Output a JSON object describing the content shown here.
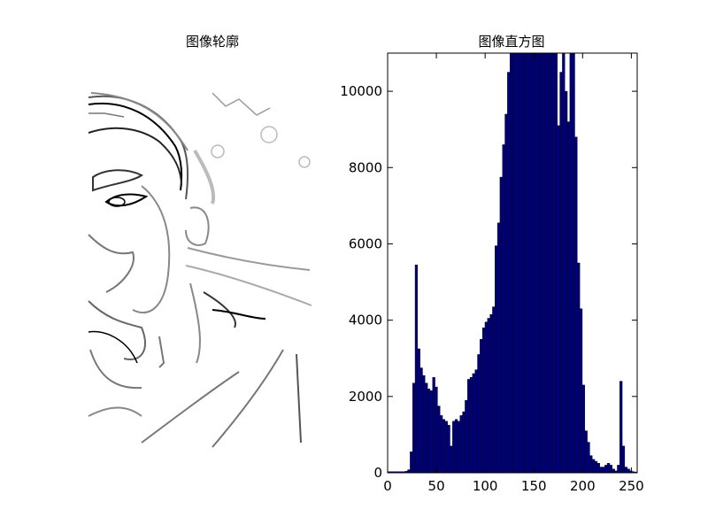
{
  "panels": {
    "left_title": "图像轮廓",
    "right_title": "图像直方图"
  },
  "chart_data": [
    {
      "type": "image",
      "title": "图像轮廓",
      "description_note": ""
    },
    {
      "type": "bar",
      "title": "图像直方图",
      "xlabel": "",
      "ylabel": "",
      "xlim": [
        0,
        256
      ],
      "ylim": [
        0,
        11000
      ],
      "xticks": [
        0,
        50,
        100,
        150,
        200,
        250
      ],
      "yticks": [
        0,
        2000,
        4000,
        6000,
        8000,
        10000
      ],
      "bar_color": "#00007f",
      "bin_width": 2.56,
      "bins": [
        {
          "x": 0,
          "value": 30
        },
        {
          "x": 2.56,
          "value": 30
        },
        {
          "x": 5.12,
          "value": 30
        },
        {
          "x": 7.68,
          "value": 30
        },
        {
          "x": 10.24,
          "value": 30
        },
        {
          "x": 12.8,
          "value": 30
        },
        {
          "x": 15.36,
          "value": 30
        },
        {
          "x": 17.92,
          "value": 40
        },
        {
          "x": 20.48,
          "value": 80
        },
        {
          "x": 23.04,
          "value": 550
        },
        {
          "x": 25.6,
          "value": 2350
        },
        {
          "x": 28.16,
          "value": 5450
        },
        {
          "x": 30.72,
          "value": 3250
        },
        {
          "x": 33.28,
          "value": 2750
        },
        {
          "x": 35.84,
          "value": 2550
        },
        {
          "x": 38.4,
          "value": 2350
        },
        {
          "x": 40.96,
          "value": 2200
        },
        {
          "x": 43.52,
          "value": 2150
        },
        {
          "x": 46.08,
          "value": 2500
        },
        {
          "x": 48.64,
          "value": 2250
        },
        {
          "x": 51.2,
          "value": 1750
        },
        {
          "x": 53.76,
          "value": 1500
        },
        {
          "x": 56.32,
          "value": 1400
        },
        {
          "x": 58.88,
          "value": 1350
        },
        {
          "x": 61.44,
          "value": 1250
        },
        {
          "x": 64.0,
          "value": 700
        },
        {
          "x": 66.56,
          "value": 1350
        },
        {
          "x": 69.12,
          "value": 1400
        },
        {
          "x": 71.68,
          "value": 1350
        },
        {
          "x": 74.24,
          "value": 1500
        },
        {
          "x": 76.8,
          "value": 1600
        },
        {
          "x": 79.36,
          "value": 1900
        },
        {
          "x": 81.92,
          "value": 2450
        },
        {
          "x": 84.48,
          "value": 2500
        },
        {
          "x": 87.04,
          "value": 2600
        },
        {
          "x": 89.6,
          "value": 2700
        },
        {
          "x": 92.16,
          "value": 3100
        },
        {
          "x": 94.72,
          "value": 3500
        },
        {
          "x": 97.28,
          "value": 3800
        },
        {
          "x": 99.84,
          "value": 3950
        },
        {
          "x": 102.4,
          "value": 4050
        },
        {
          "x": 104.96,
          "value": 4150
        },
        {
          "x": 107.52,
          "value": 4350
        },
        {
          "x": 110.08,
          "value": 5950
        },
        {
          "x": 112.64,
          "value": 6550
        },
        {
          "x": 115.2,
          "value": 7750
        },
        {
          "x": 117.76,
          "value": 8600
        },
        {
          "x": 120.32,
          "value": 9400
        },
        {
          "x": 122.88,
          "value": 10500
        },
        {
          "x": 125.44,
          "value": 11000
        },
        {
          "x": 128.0,
          "value": 11000
        },
        {
          "x": 130.56,
          "value": 11000
        },
        {
          "x": 133.12,
          "value": 11000
        },
        {
          "x": 135.68,
          "value": 11000
        },
        {
          "x": 138.24,
          "value": 11000
        },
        {
          "x": 140.8,
          "value": 11000
        },
        {
          "x": 143.36,
          "value": 11000
        },
        {
          "x": 145.92,
          "value": 11000
        },
        {
          "x": 148.48,
          "value": 11000
        },
        {
          "x": 151.04,
          "value": 11000
        },
        {
          "x": 153.6,
          "value": 11000
        },
        {
          "x": 156.16,
          "value": 11000
        },
        {
          "x": 158.72,
          "value": 11000
        },
        {
          "x": 161.28,
          "value": 11000
        },
        {
          "x": 163.84,
          "value": 11000
        },
        {
          "x": 166.4,
          "value": 11000
        },
        {
          "x": 168.96,
          "value": 11000
        },
        {
          "x": 171.52,
          "value": 11000
        },
        {
          "x": 174.08,
          "value": 9100
        },
        {
          "x": 176.64,
          "value": 10500
        },
        {
          "x": 179.2,
          "value": 11000
        },
        {
          "x": 181.76,
          "value": 10000
        },
        {
          "x": 184.32,
          "value": 9200
        },
        {
          "x": 186.88,
          "value": 11000
        },
        {
          "x": 189.44,
          "value": 11000
        },
        {
          "x": 192.0,
          "value": 8800
        },
        {
          "x": 194.56,
          "value": 5500
        },
        {
          "x": 197.12,
          "value": 4300
        },
        {
          "x": 199.68,
          "value": 2300
        },
        {
          "x": 202.24,
          "value": 1100
        },
        {
          "x": 204.8,
          "value": 800
        },
        {
          "x": 207.36,
          "value": 450
        },
        {
          "x": 209.92,
          "value": 350
        },
        {
          "x": 212.48,
          "value": 300
        },
        {
          "x": 215.04,
          "value": 250
        },
        {
          "x": 217.6,
          "value": 150
        },
        {
          "x": 220.16,
          "value": 150
        },
        {
          "x": 222.72,
          "value": 200
        },
        {
          "x": 225.28,
          "value": 250
        },
        {
          "x": 227.84,
          "value": 200
        },
        {
          "x": 230.4,
          "value": 100
        },
        {
          "x": 232.96,
          "value": 50
        },
        {
          "x": 235.52,
          "value": 200
        },
        {
          "x": 238.08,
          "value": 2400
        },
        {
          "x": 240.64,
          "value": 700
        },
        {
          "x": 243.2,
          "value": 150
        },
        {
          "x": 245.76,
          "value": 100
        },
        {
          "x": 248.32,
          "value": 50
        },
        {
          "x": 250.88,
          "value": 30
        },
        {
          "x": 253.44,
          "value": 20
        }
      ]
    }
  ]
}
